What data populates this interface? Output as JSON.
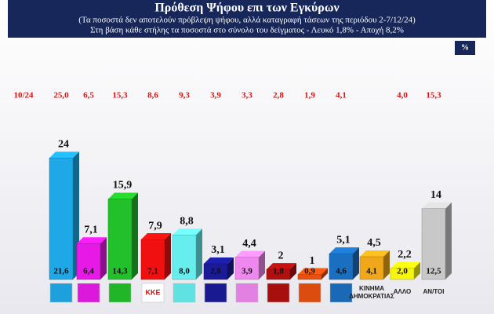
{
  "chart_data": {
    "type": "bar",
    "title": "Πρόθεση Ψήφου επι των Εγκύρων",
    "subtitle": [
      "(Τα ποσοστά δεν αποτελούν πρόβλεψη ψήφου, αλλά καταγραφή τάσεων της περιόδου  2-7/12/24)",
      "Στη βάση κάθε στήλης τα ποσοστά στο σύνολο του δείγματος - Λευκό 1,8% - Αποχή 8,2%"
    ],
    "unit_badge": "%",
    "categories": [
      null,
      null,
      null,
      "ΚΚΕ",
      null,
      null,
      null,
      null,
      null,
      null,
      "ΚΙΝΗΜΑ ΔΗΜΟΚΡΑΤΙΑΣ",
      "ΑΛΛΟ",
      "ΑΝ/ΤΟΙ"
    ],
    "colors": [
      "#1ea8e8",
      "#e619e6",
      "#22c02a",
      "#f01010",
      "#66eeee",
      "#1a1a9a",
      "#ee88ee",
      "#b01010",
      "#e85010",
      "#1b6fc0",
      "#f0a81a",
      "#f5f510",
      "#c8c8c8"
    ],
    "series": [
      {
        "name": "Πρόθεση ψήφου επί των εγκύρων",
        "values": [
          24,
          7.1,
          15.9,
          7.9,
          8.8,
          3.1,
          4.4,
          2,
          1,
          5.1,
          4.5,
          2.2,
          14
        ],
        "value_labels": [
          "24",
          "7,1",
          "15,9",
          "7,9",
          "8,8",
          "3,1",
          "4,4",
          "2",
          "1",
          "5,1",
          "4,5",
          "2,2",
          "14"
        ]
      },
      {
        "name": "Στο σύνολο του δείγματος",
        "values": [
          21.6,
          6.4,
          14.3,
          7.1,
          8.0,
          2.8,
          3.9,
          1.8,
          0.9,
          4.6,
          4.1,
          2.0,
          12.5
        ],
        "value_labels": [
          "21,6",
          "6,4",
          "14,3",
          "7,1",
          "8,0",
          "2,8",
          "3,9",
          "1,8",
          "0,9",
          "4,6",
          "4,1",
          "2,0",
          "12,5"
        ]
      },
      {
        "name": "10/24",
        "values": [
          25.0,
          6.5,
          15.3,
          8.6,
          9.3,
          3.9,
          3.3,
          2.8,
          1.9,
          4.1,
          null,
          4.0,
          15.3
        ],
        "value_labels": [
          "25,0",
          "6,5",
          "15,3",
          "8,6",
          "9,3",
          "3,9",
          "3,3",
          "2,8",
          "1,9",
          "4,1",
          null,
          "4,0",
          "15,3"
        ]
      }
    ]
  }
}
